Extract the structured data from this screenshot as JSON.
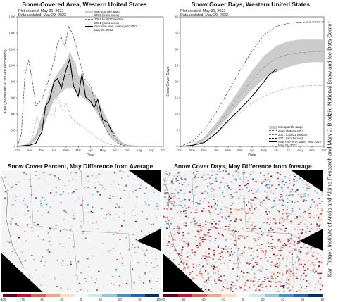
{
  "credit": "Karl Rittger, Institute of Arctic and Alpine Research and Mary J. Brodzik, National Snow and Ice Data Center",
  "panels": {
    "area": {
      "title": "Snow-Covered Area, Western United States",
      "plot_created": "Plot created: May 31, 2022",
      "data_updated": "Data updated: May 29, 2022",
      "legend": [
        "Interquartile range",
        "2015 (least snow)",
        "2001 to 2022 median",
        "2001 (most snow)",
        "near real-time, water year 2022",
        "May 29, 2022"
      ]
    },
    "days": {
      "title": "Snow Cover Days, Western United States",
      "plot_created": "Plot created: May 31, 2022",
      "data_updated": "Data updated: May 29, 2022",
      "legend": [
        "Interquartile range",
        "2015 (least snow)",
        "2001 to 2021 median",
        "2001 (most snow)",
        "near real-time, water year 2022",
        "May 29, 2022"
      ]
    },
    "map_percent": {
      "title": "Snow Cover Percent, May Difference from Average",
      "ticks": [
        "-100",
        "-75",
        "-50",
        "-25",
        "0",
        "25",
        "50",
        "75",
        "100"
      ]
    },
    "map_days": {
      "title": "Snow Cover Days, May Difference from Average",
      "ticks": [
        "-80",
        "-60",
        "-40",
        "-20",
        "0",
        "20",
        "40",
        "60",
        "80"
      ]
    }
  },
  "colors": {
    "iqr": "#cccccc",
    "series": "#000000",
    "diverging": [
      "#67001f",
      "#b2182b",
      "#d6604d",
      "#f4a582",
      "#fddbc7",
      "#f7f7f7",
      "#d1e5f0",
      "#92c5de",
      "#4393c3",
      "#2166ac",
      "#053061"
    ]
  },
  "chart_data": [
    {
      "type": "line",
      "title": "Snow-Covered Area, Western United States",
      "xlabel": "Date",
      "ylabel": "Area (thousands of square kilometers)",
      "x_ticks": [
        "Oct",
        "Nov",
        "Dec",
        "Jan",
        "Feb",
        "Mar",
        "Apr",
        "May",
        "Jun",
        "Jul",
        "Aug",
        "Sep",
        "Oct"
      ],
      "ylim": [
        0,
        1600
      ],
      "y_ticks": [
        0,
        200,
        400,
        600,
        800,
        1000,
        1200,
        1400,
        1600
      ],
      "iqr_upper": [
        [
          0,
          3
        ],
        [
          0.5,
          15
        ],
        [
          1,
          45
        ],
        [
          1.5,
          150
        ],
        [
          2,
          380
        ],
        [
          2.5,
          620
        ],
        [
          3,
          830
        ],
        [
          3.5,
          950
        ],
        [
          4,
          1050
        ],
        [
          4.3,
          1180
        ],
        [
          4.5,
          1100
        ],
        [
          4.8,
          1020
        ],
        [
          5,
          880
        ],
        [
          5.5,
          800
        ],
        [
          6,
          720
        ],
        [
          6.5,
          620
        ],
        [
          7,
          450
        ],
        [
          7.5,
          300
        ],
        [
          8,
          160
        ],
        [
          8.5,
          60
        ],
        [
          9,
          20
        ],
        [
          10,
          6
        ],
        [
          11,
          3
        ],
        [
          12,
          3
        ]
      ],
      "iqr_lower": [
        [
          0,
          1
        ],
        [
          0.5,
          6
        ],
        [
          1,
          20
        ],
        [
          1.5,
          70
        ],
        [
          2,
          210
        ],
        [
          2.5,
          390
        ],
        [
          3,
          570
        ],
        [
          3.5,
          650
        ],
        [
          4,
          720
        ],
        [
          4.5,
          720
        ],
        [
          5,
          650
        ],
        [
          5.5,
          590
        ],
        [
          6,
          520
        ],
        [
          6.5,
          420
        ],
        [
          7,
          280
        ],
        [
          7.5,
          150
        ],
        [
          8,
          70
        ],
        [
          8.5,
          25
        ],
        [
          9,
          8
        ],
        [
          10,
          2
        ],
        [
          11,
          1
        ],
        [
          12,
          1
        ]
      ],
      "series": [
        {
          "name": "2015 (least snow)",
          "style": "dotted",
          "points": [
            [
              0,
              2
            ],
            [
              0.7,
              20
            ],
            [
              1.2,
              90
            ],
            [
              1.6,
              380
            ],
            [
              2,
              170
            ],
            [
              2.5,
              420
            ],
            [
              3,
              360
            ],
            [
              3.3,
              650
            ],
            [
              3.6,
              430
            ],
            [
              4,
              530
            ],
            [
              4.5,
              330
            ],
            [
              5,
              280
            ],
            [
              5.5,
              230
            ],
            [
              6,
              170
            ],
            [
              6.5,
              110
            ],
            [
              7,
              60
            ],
            [
              7.5,
              30
            ],
            [
              8,
              12
            ],
            [
              9,
              3
            ],
            [
              10,
              1
            ],
            [
              12,
              1
            ]
          ]
        },
        {
          "name": "2001 to 2022 median",
          "style": "dashdot",
          "points": [
            [
              0,
              2
            ],
            [
              0.5,
              10
            ],
            [
              1,
              30
            ],
            [
              1.5,
              110
            ],
            [
              2,
              290
            ],
            [
              2.5,
              500
            ],
            [
              3,
              700
            ],
            [
              3.5,
              800
            ],
            [
              4,
              880
            ],
            [
              4.5,
              900
            ],
            [
              5,
              780
            ],
            [
              5.5,
              690
            ],
            [
              6,
              620
            ],
            [
              6.5,
              520
            ],
            [
              7,
              360
            ],
            [
              7.5,
              210
            ],
            [
              8,
              100
            ],
            [
              8.5,
              40
            ],
            [
              9,
              12
            ],
            [
              10,
              3
            ],
            [
              12,
              1
            ]
          ]
        },
        {
          "name": "2001 (most snow)",
          "style": "dashed",
          "points": [
            [
              0,
              3
            ],
            [
              0.3,
              150
            ],
            [
              0.6,
              880
            ],
            [
              0.9,
              1070
            ],
            [
              1.2,
              820
            ],
            [
              1.5,
              500
            ],
            [
              2,
              580
            ],
            [
              2.5,
              800
            ],
            [
              3,
              1050
            ],
            [
              3.3,
              1280
            ],
            [
              3.6,
              1350
            ],
            [
              3.9,
              1230
            ],
            [
              4.2,
              1480
            ],
            [
              4.5,
              1400
            ],
            [
              4.8,
              1250
            ],
            [
              5.2,
              1000
            ],
            [
              5.5,
              840
            ],
            [
              6,
              750
            ],
            [
              6.5,
              500
            ],
            [
              7,
              300
            ],
            [
              7.5,
              150
            ],
            [
              8,
              60
            ],
            [
              8.5,
              20
            ],
            [
              9,
              5
            ],
            [
              12,
              2
            ]
          ]
        },
        {
          "name": "near real-time, water year 2022",
          "style": "solid",
          "points": [
            [
              0,
              2
            ],
            [
              0.5,
              8
            ],
            [
              1,
              15
            ],
            [
              1.5,
              40
            ],
            [
              2,
              180
            ],
            [
              2.3,
              500
            ],
            [
              2.6,
              560
            ],
            [
              3,
              800
            ],
            [
              3.3,
              840
            ],
            [
              3.6,
              720
            ],
            [
              4,
              950
            ],
            [
              4.3,
              1080
            ],
            [
              4.6,
              750
            ],
            [
              5,
              620
            ],
            [
              5.3,
              900
            ],
            [
              5.6,
              610
            ],
            [
              6,
              560
            ],
            [
              6.3,
              480
            ],
            [
              6.6,
              580
            ],
            [
              7,
              330
            ],
            [
              7.4,
              300
            ],
            [
              7.7,
              200
            ],
            [
              7.95,
              150
            ]
          ]
        }
      ],
      "marker": {
        "name": "May 29, 2022",
        "x": 7.95,
        "y": 150
      }
    },
    {
      "type": "line",
      "title": "Snow Cover Days, Western United States",
      "xlabel": "Date",
      "ylabel": "Snow Cover Days",
      "x_ticks": [
        "Oct",
        "Nov",
        "Dec",
        "Jan",
        "Feb",
        "Mar",
        "Apr",
        "May",
        "Jun",
        "Jul",
        "Aug",
        "Sep",
        "Oct"
      ],
      "ylim": [
        0,
        40
      ],
      "y_ticks": [
        0,
        5,
        10,
        15,
        20,
        25,
        30,
        35,
        40
      ],
      "iqr_upper": [
        [
          0,
          0
        ],
        [
          1,
          0.6
        ],
        [
          2,
          2.8
        ],
        [
          3,
          7.2
        ],
        [
          4,
          12.5
        ],
        [
          5,
          18
        ],
        [
          6,
          23.5
        ],
        [
          7,
          28
        ],
        [
          8,
          31
        ],
        [
          9,
          32.5
        ],
        [
          10,
          33
        ],
        [
          11,
          33
        ],
        [
          12,
          33
        ]
      ],
      "iqr_lower": [
        [
          0,
          0
        ],
        [
          1,
          0.3
        ],
        [
          2,
          1.8
        ],
        [
          3,
          5
        ],
        [
          4,
          9
        ],
        [
          5,
          13.5
        ],
        [
          6,
          17.5
        ],
        [
          7,
          21
        ],
        [
          8,
          23
        ],
        [
          9,
          24.5
        ],
        [
          10,
          25.5
        ],
        [
          11,
          26
        ],
        [
          12,
          26
        ]
      ],
      "series": [
        {
          "name": "2015 (least snow)",
          "style": "dotted",
          "points": [
            [
              0,
              0
            ],
            [
              1,
              0.3
            ],
            [
              2,
              1.6
            ],
            [
              3,
              4
            ],
            [
              4,
              7.5
            ],
            [
              5,
              10.5
            ],
            [
              6,
              13.5
            ],
            [
              7,
              15.5
            ],
            [
              8,
              17
            ],
            [
              9,
              18
            ],
            [
              10,
              18.6
            ],
            [
              11,
              18.8
            ],
            [
              12,
              18.8
            ]
          ]
        },
        {
          "name": "2001 to 2021 median",
          "style": "dashdot",
          "points": [
            [
              0,
              0
            ],
            [
              1,
              0.4
            ],
            [
              2,
              2.2
            ],
            [
              3,
              6
            ],
            [
              4,
              10.8
            ],
            [
              5,
              15.8
            ],
            [
              6,
              20.5
            ],
            [
              7,
              24.5
            ],
            [
              8,
              27.2
            ],
            [
              9,
              28.4
            ],
            [
              10,
              29
            ],
            [
              11,
              29.2
            ],
            [
              12,
              29.2
            ]
          ]
        },
        {
          "name": "2001 (most snow)",
          "style": "dashed",
          "points": [
            [
              0,
              0
            ],
            [
              1,
              1.5
            ],
            [
              2,
              5
            ],
            [
              3,
              10.5
            ],
            [
              4,
              17
            ],
            [
              5,
              23.5
            ],
            [
              6,
              29.5
            ],
            [
              7,
              34.5
            ],
            [
              8,
              37
            ],
            [
              9,
              38
            ],
            [
              10,
              38.4
            ],
            [
              11,
              38.5
            ],
            [
              12,
              38.5
            ]
          ]
        },
        {
          "name": "near real-time, water year 2022",
          "style": "solid",
          "points": [
            [
              0,
              0
            ],
            [
              1,
              0.3
            ],
            [
              2,
              1.2
            ],
            [
              3,
              4
            ],
            [
              4,
              8
            ],
            [
              5,
              11.5
            ],
            [
              6,
              15.5
            ],
            [
              7,
              20
            ],
            [
              7.5,
              22.5
            ],
            [
              7.95,
              23.5
            ]
          ]
        }
      ],
      "marker": {
        "name": "May 29, 2022",
        "x": 7.95,
        "y": 23.5
      }
    }
  ]
}
